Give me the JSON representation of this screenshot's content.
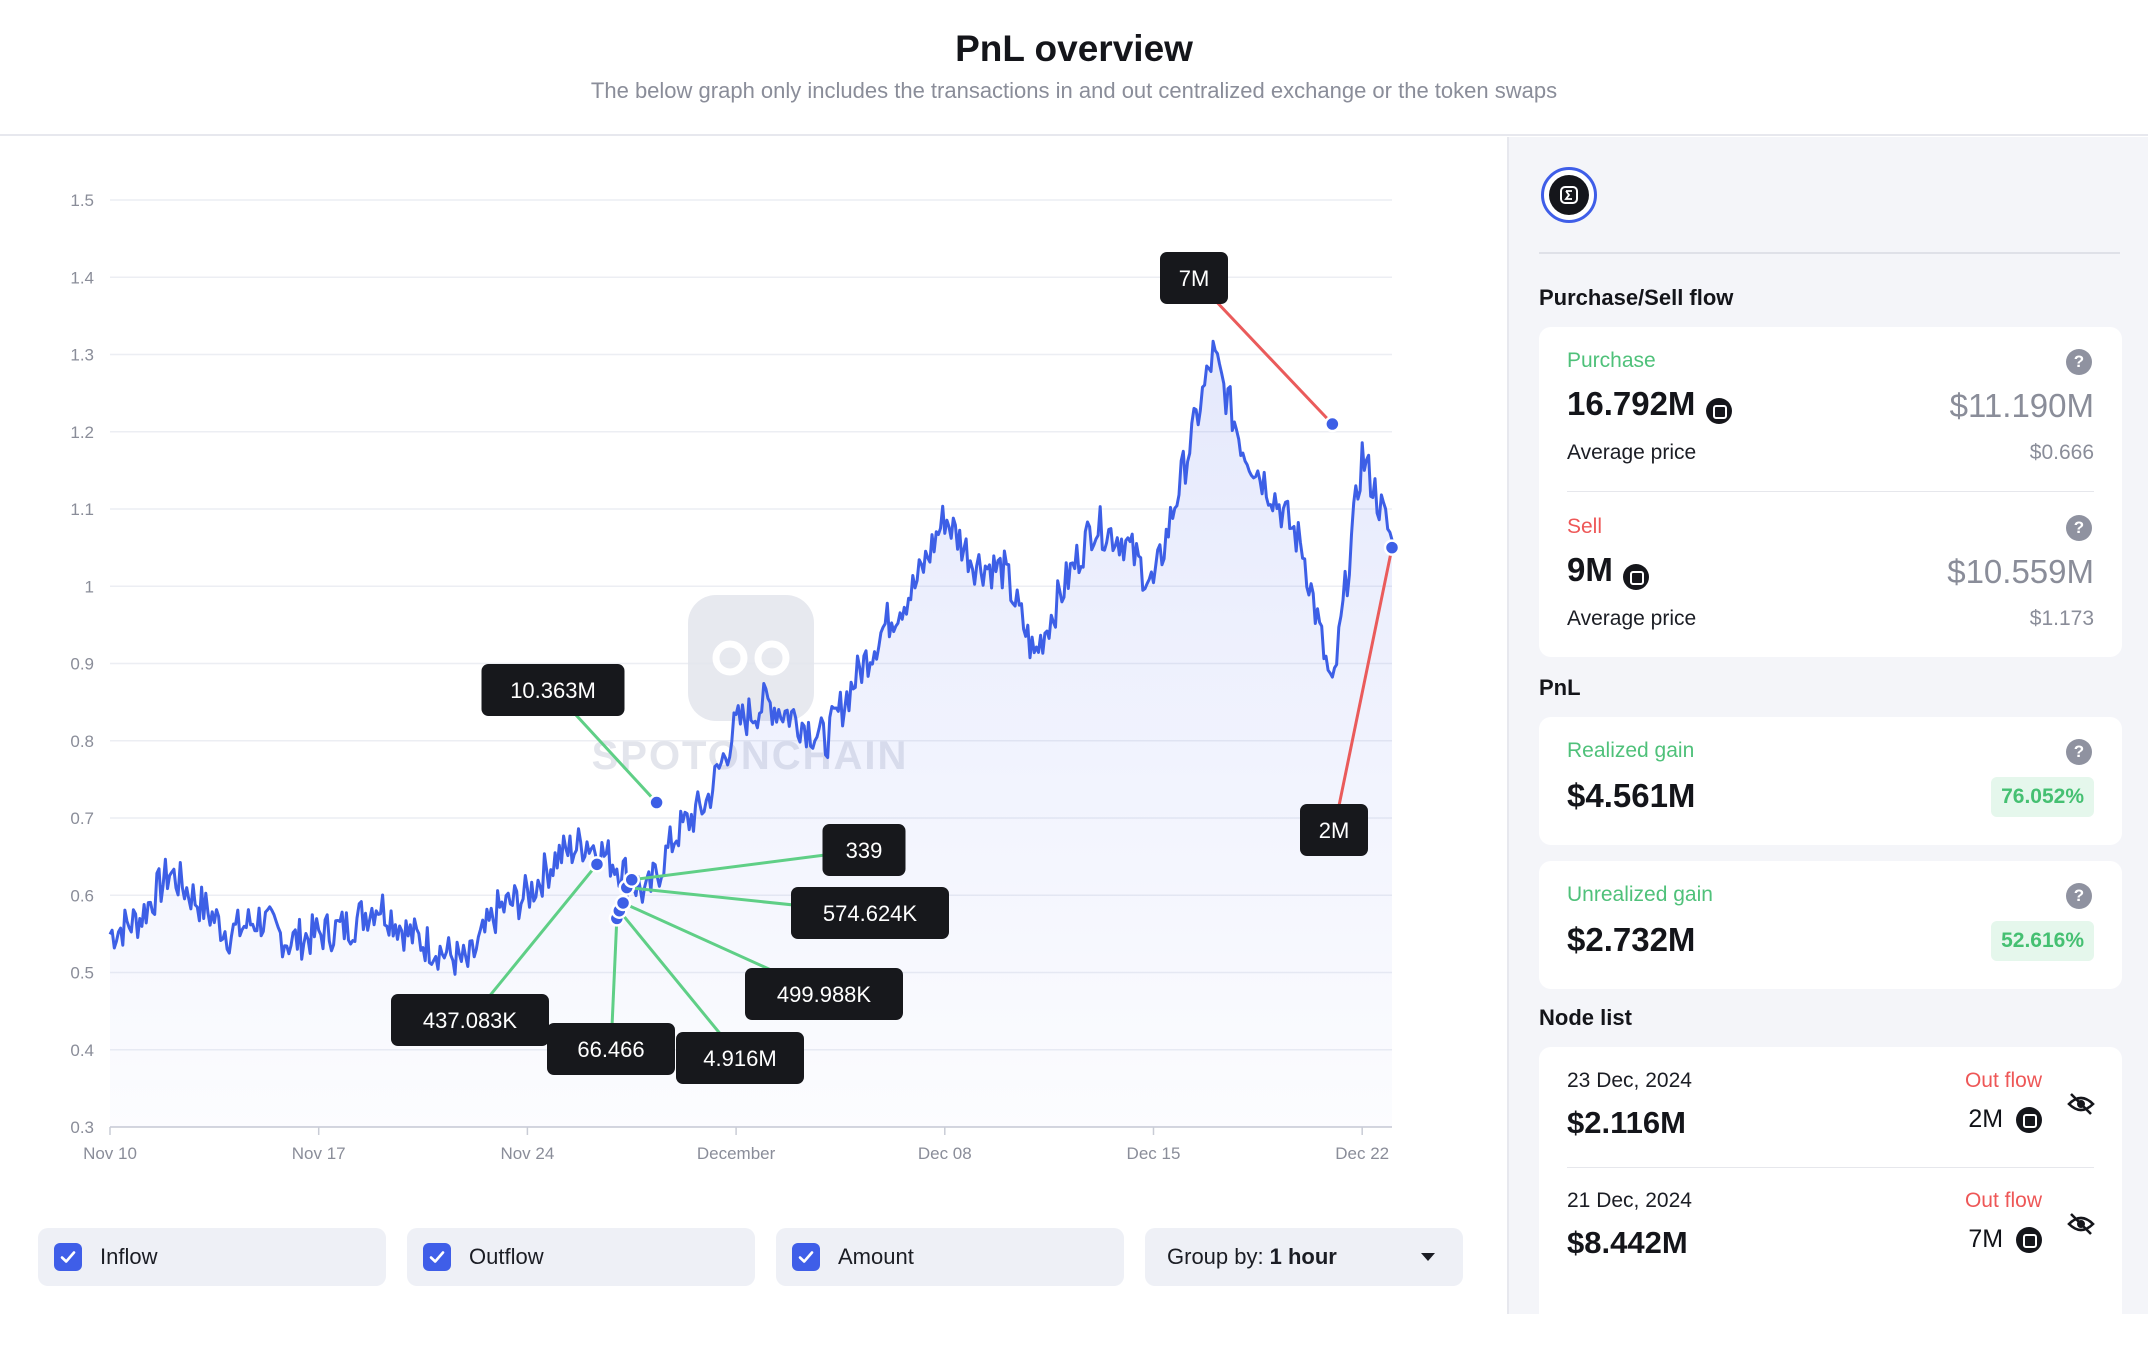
{
  "header": {
    "title": "PnL overview",
    "subtitle": "The below graph only includes the transactions in and out centralized exchange or the token swaps"
  },
  "chart_data": {
    "type": "line",
    "title": "",
    "xlabel": "",
    "ylabel": "",
    "ylim": [
      0.3,
      1.5
    ],
    "y_ticks": [
      "1.5",
      "1.4",
      "1.3",
      "1.2",
      "1.1",
      "1",
      "0.9",
      "0.8",
      "0.7",
      "0.6",
      "0.5",
      "0.4",
      "0.3"
    ],
    "x_tick_labels": [
      "Nov 10",
      "Nov 17",
      "Nov 24",
      "December",
      "Dec 08",
      "Dec 15",
      "Dec 22"
    ],
    "watermark": "SPOTONCHAIN",
    "series": [
      {
        "x": [
          "2024-11-10",
          "2024-11-11",
          "2024-11-12",
          "2024-11-13",
          "2024-11-14",
          "2024-11-15",
          "2024-11-16",
          "2024-11-17",
          "2024-11-18",
          "2024-11-19",
          "2024-11-20",
          "2024-11-21",
          "2024-11-22",
          "2024-11-23",
          "2024-11-24",
          "2024-11-25",
          "2024-11-26",
          "2024-11-27",
          "2024-11-28",
          "2024-11-29",
          "2024-11-30",
          "2024-12-01",
          "2024-12-02",
          "2024-12-03",
          "2024-12-04",
          "2024-12-05",
          "2024-12-06",
          "2024-12-07",
          "2024-12-08",
          "2024-12-09",
          "2024-12-10",
          "2024-12-11",
          "2024-12-12",
          "2024-12-13",
          "2024-12-14",
          "2024-12-15",
          "2024-12-16",
          "2024-12-17",
          "2024-12-18",
          "2024-12-19",
          "2024-12-20",
          "2024-12-21",
          "2024-12-22",
          "2024-12-23"
        ],
        "values": [
          0.55,
          0.57,
          0.63,
          0.59,
          0.55,
          0.57,
          0.54,
          0.55,
          0.56,
          0.59,
          0.55,
          0.53,
          0.51,
          0.58,
          0.6,
          0.65,
          0.67,
          0.64,
          0.6,
          0.68,
          0.72,
          0.82,
          0.85,
          0.83,
          0.8,
          0.88,
          0.95,
          1.0,
          1.09,
          1.03,
          1.02,
          0.91,
          1.0,
          1.08,
          1.06,
          1.0,
          1.15,
          1.3,
          1.18,
          1.12,
          1.05,
          0.86,
          1.17,
          1.06
        ]
      }
    ],
    "annotations": [
      {
        "label": "10.363M",
        "type": "inflow"
      },
      {
        "label": "437.083K",
        "type": "inflow"
      },
      {
        "label": "66.466",
        "type": "inflow"
      },
      {
        "label": "4.916M",
        "type": "inflow"
      },
      {
        "label": "499.988K",
        "type": "inflow"
      },
      {
        "label": "574.624K",
        "type": "inflow"
      },
      {
        "label": "339",
        "type": "inflow"
      },
      {
        "label": "7M",
        "type": "outflow"
      },
      {
        "label": "2M",
        "type": "outflow"
      }
    ],
    "colors": {
      "line": "#3d5fe6",
      "inflow": "#5fcf86",
      "outflow": "#ea5b5b"
    }
  },
  "controls": {
    "inflow_label": "Inflow",
    "outflow_label": "Outflow",
    "amount_label": "Amount",
    "group_prefix": "Group by:",
    "group_value": "1 hour"
  },
  "sidebar": {
    "token_icon": "token-logo",
    "flow_title": "Purchase/Sell flow",
    "purchase": {
      "label": "Purchase",
      "amount": "16.792M",
      "usd": "$11.190M",
      "avg_label": "Average price",
      "avg_value": "$0.666"
    },
    "sell": {
      "label": "Sell",
      "amount": "9M",
      "usd": "$10.559M",
      "avg_label": "Average price",
      "avg_value": "$1.173"
    },
    "pnl_title": "PnL",
    "realized": {
      "label": "Realized gain",
      "value": "$4.561M",
      "pct": "76.052%"
    },
    "unrealized": {
      "label": "Unrealized gain",
      "value": "$2.732M",
      "pct": "52.616%"
    },
    "node_title": "Node list",
    "nodes": [
      {
        "date": "23 Dec, 2024",
        "value": "$2.116M",
        "flow": "Out flow",
        "amount": "2M"
      },
      {
        "date": "21 Dec, 2024",
        "value": "$8.442M",
        "flow": "Out flow",
        "amount": "7M"
      }
    ]
  }
}
